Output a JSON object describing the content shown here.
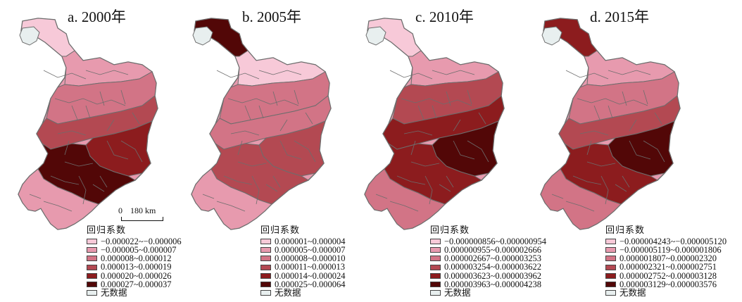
{
  "legend_title": "回归系数",
  "no_data_label": "无数据",
  "colors": {
    "c1": "#f7c9d8",
    "c2": "#e79aae",
    "c3": "#d27486",
    "c4": "#b34952",
    "c5": "#8c1c1e",
    "c6": "#520707",
    "nodata": "#e8efef",
    "border": "#6d6d6d"
  },
  "scalebar": {
    "zero": "0",
    "distance": "180 km"
  },
  "panels": [
    {
      "title": "a. 2000年",
      "legend": [
        "−0.000022~−0.000006",
        "−0.000005~0.000007",
        "0.000008~0.000012",
        "0.000013~0.000019",
        "0.000020~0.000026",
        "0.000027~0.000037"
      ]
    },
    {
      "title": "b. 2005年",
      "legend": [
        "0.000001~0.000004",
        "0.000005~0.000007",
        "0.000008~0.000010",
        "0.000011~0.000013",
        "0.000014~0.000024",
        "0.000025~0.000064"
      ]
    },
    {
      "title": "c. 2010年",
      "legend": [
        "−0.000000856~0.000000954",
        "0.000000955~0.000002666",
        "0.000002667~0.000003253",
        "0.000003254~0.000003622",
        "0.000003623~0.000003962",
        "0.000003963~0.000004238"
      ]
    },
    {
      "title": "d. 2015年",
      "legend": [
        "−0.000004243~−0.000005120",
        "−0.000005119~0.000001806",
        "0.000001807~0.000002320",
        "0.000002321~0.000002751",
        "0.000002752~0.000003128",
        "0.000003129~0.000003576"
      ]
    }
  ],
  "map_classes": {
    "a": [
      "c1",
      "nodata",
      "c2",
      "c3",
      "c4",
      "c5",
      "c6",
      "c2"
    ],
    "b": [
      "c6",
      "nodata",
      "c1",
      "c3",
      "c3",
      "c4",
      "c4",
      "c2"
    ],
    "c": [
      "c1",
      "nodata",
      "c2",
      "c4",
      "c5",
      "c6",
      "c5",
      "c3"
    ],
    "d": [
      "c5",
      "nodata",
      "c2",
      "c3",
      "c4",
      "c6",
      "c5",
      "c3"
    ]
  }
}
